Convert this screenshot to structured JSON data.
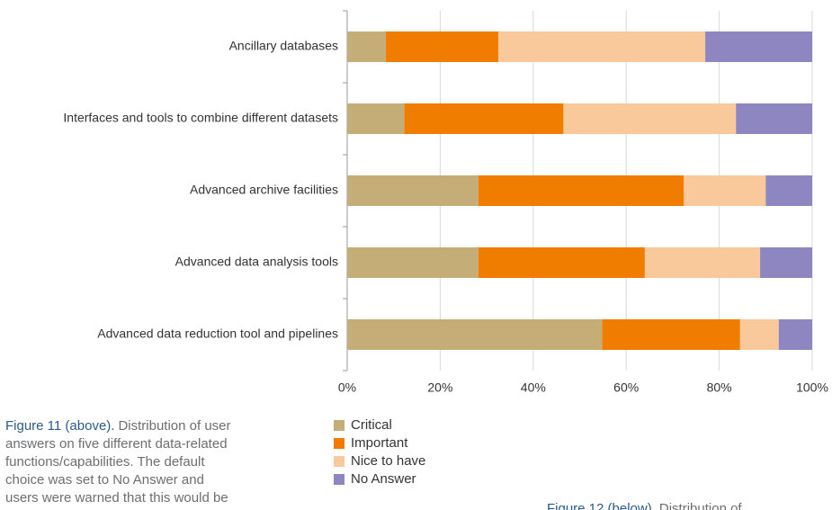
{
  "chart_data": {
    "type": "stacked_barh",
    "categories": [
      "Ancillary databases",
      "Interfaces and tools to combine different datasets",
      "Advanced archive facilities",
      "Advanced data analysis tools",
      "Advanced data reduction tool and pipelines"
    ],
    "series": [
      {
        "name": "Critical",
        "color": "#c4ad77",
        "values": [
          8.3,
          12.3,
          28.2,
          28.2,
          54.8
        ]
      },
      {
        "name": "Important",
        "color": "#f07d00",
        "values": [
          24.2,
          34.2,
          44.2,
          35.8,
          29.7
        ]
      },
      {
        "name": "Nice to have",
        "color": "#f9c89b",
        "values": [
          44.5,
          37.1,
          17.6,
          24.8,
          8.3
        ]
      },
      {
        "name": "No Answer",
        "color": "#8e86c1",
        "values": [
          23,
          16.4,
          10,
          11.2,
          7.2
        ]
      }
    ],
    "xlim": [
      0,
      100
    ],
    "xticks": [
      {
        "value": 0,
        "label": "0%"
      },
      {
        "value": 20,
        "label": "20%"
      },
      {
        "value": 40,
        "label": "40%"
      },
      {
        "value": 60,
        "label": "60%"
      },
      {
        "value": 80,
        "label": "80%"
      },
      {
        "value": 100,
        "label": "100%"
      }
    ],
    "grid": true
  },
  "captions": [
    {
      "label": "Figure 11 (above).",
      "lines": [
        "Distribution of user",
        "answers on five different data-related",
        "functions/capabilities. The default",
        "choice was set to No Answer and",
        "users were warned that this would be"
      ]
    },
    {
      "label": "Figure 12 (below).",
      "lines": [
        "Distribution of"
      ]
    }
  ]
}
